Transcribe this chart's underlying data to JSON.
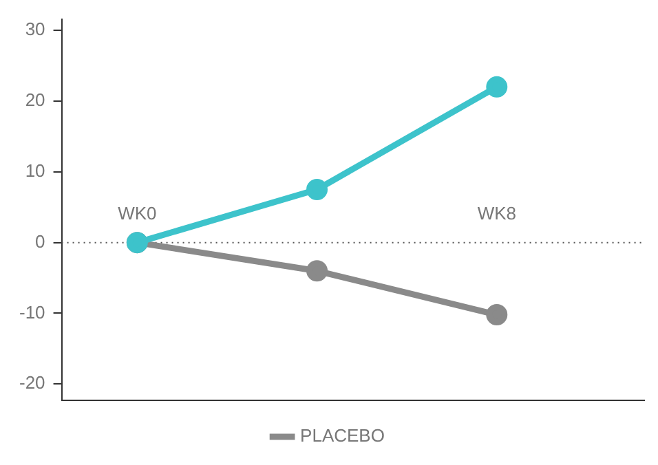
{
  "chart_data": {
    "type": "line",
    "categories": [
      "WK0",
      null,
      "WK8"
    ],
    "series": [
      {
        "color": "#3dc3cb",
        "values": [
          0,
          7.5,
          22
        ]
      },
      {
        "name": "PLACEBO",
        "color": "#8a8a8a",
        "values": [
          0,
          -4,
          -10.2
        ]
      }
    ],
    "ylim": [
      -22.3,
      31.6
    ],
    "yticks": [
      -20,
      -10,
      0,
      10,
      20,
      30
    ],
    "ref_lines": [
      {
        "axis": "y",
        "value": 0,
        "color": "#555555",
        "line_style": "dotted"
      }
    ],
    "grid": false,
    "legend": "bottom",
    "marker": "circle",
    "line_style": "solid"
  }
}
